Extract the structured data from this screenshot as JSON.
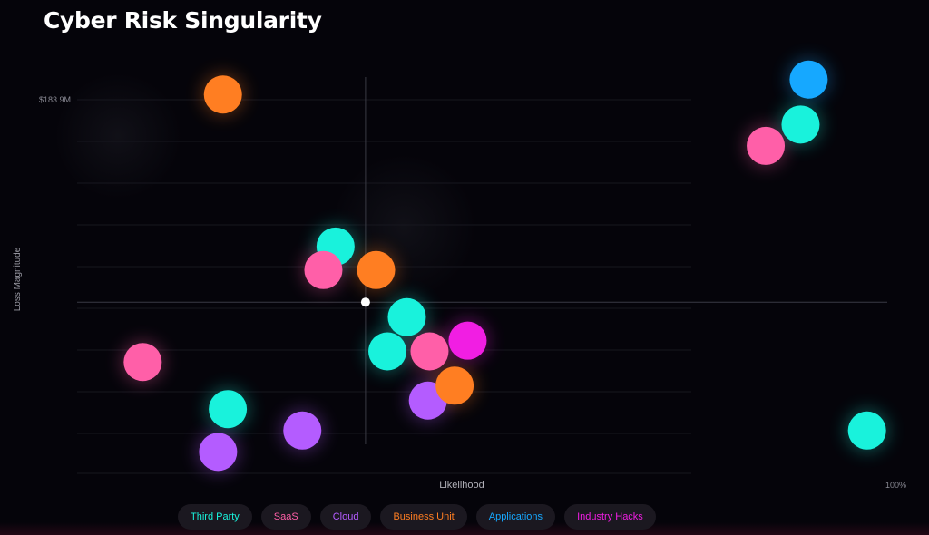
{
  "title": "Cyber Risk Singularity",
  "chart_data": {
    "type": "scatter",
    "ylabel": "Loss Magnitude",
    "xlabel": "Likelihood",
    "y_top_label": "$183.9M",
    "x_right_label": "100%",
    "xlim": [
      0,
      100
    ],
    "ylim": [
      0,
      183.9
    ],
    "grid": true,
    "legend_position": "bottom",
    "crosshair": {
      "x": 35.6,
      "y": 80
    },
    "series": [
      {
        "name": "Third Party",
        "color": "#19f2dc",
        "points": [
          [
            31.9,
            106
          ],
          [
            40.7,
            73
          ],
          [
            38.3,
            57
          ],
          [
            18.6,
            30
          ],
          [
            97.5,
            20
          ],
          [
            89.3,
            163
          ]
        ]
      },
      {
        "name": "SaaS",
        "color": "#ff5fa8",
        "points": [
          [
            8.1,
            52
          ],
          [
            30.4,
            95
          ],
          [
            43.5,
            57
          ],
          [
            85.0,
            153
          ]
        ]
      },
      {
        "name": "Cloud",
        "color": "#b45cff",
        "points": [
          [
            17.4,
            10
          ],
          [
            27.8,
            20
          ],
          [
            43.3,
            34
          ]
        ]
      },
      {
        "name": "Business Unit",
        "color": "#ff7e22",
        "points": [
          [
            18.0,
            177
          ],
          [
            36.9,
            95
          ],
          [
            46.6,
            41
          ]
        ]
      },
      {
        "name": "Applications",
        "color": "#16a8ff",
        "points": [
          [
            90.3,
            184
          ]
        ]
      },
      {
        "name": "Industry Hacks",
        "color": "#f11ee3",
        "points": [
          [
            48.2,
            62
          ]
        ]
      }
    ]
  }
}
